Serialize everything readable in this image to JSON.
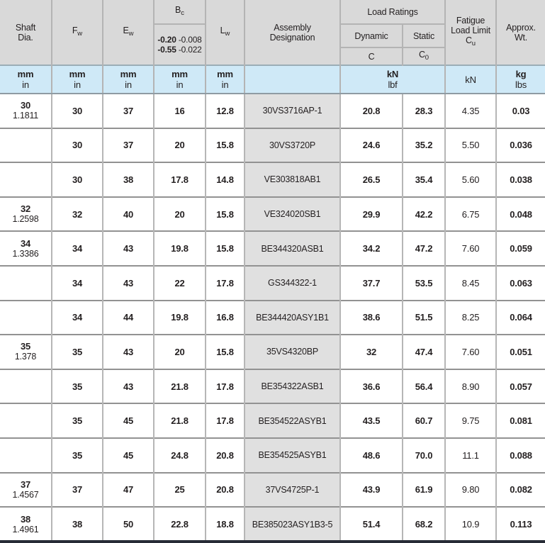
{
  "header": {
    "shaft_line1": "Shaft",
    "shaft_line2": "Dia.",
    "fw_base": "F",
    "fw_sub": "w",
    "ew_base": "E",
    "ew_sub": "w",
    "bc_base": "B",
    "bc_sub": "c",
    "bc_tol_mm_1": "-0.20",
    "bc_tol_in_1": "-0.008",
    "bc_tol_mm_2": "-0.55",
    "bc_tol_in_2": "-0.022",
    "lw_base": "L",
    "lw_sub": "w",
    "assembly_line1": "Assembly",
    "assembly_line2": "Designation",
    "load_ratings": "Load Ratings",
    "dynamic": "Dynamic",
    "static": "Static",
    "c_label": "C",
    "c0_base": "C",
    "c0_sub": "0",
    "fatigue_line1": "Fatigue",
    "fatigue_line2": "Load Limit",
    "fatigue_base": "C",
    "fatigue_sub": "u",
    "approx_line1": "Approx.",
    "approx_line2": "Wt."
  },
  "units": {
    "mm": "mm",
    "in": "in",
    "kn": "kN",
    "lbf": "lbf",
    "kn_fatigue": "kN",
    "kg": "kg",
    "lbs": "lbs"
  },
  "rows": [
    {
      "shaft_mm": "30",
      "shaft_in": "1.1811",
      "fw": "30",
      "ew": "37",
      "bc": "16",
      "lw": "12.8",
      "assembly": "30VS3716AP-1",
      "c": "20.8",
      "c0": "28.3",
      "cu": "4.35",
      "wt": "0.03"
    },
    {
      "shaft_mm": "",
      "shaft_in": "",
      "fw": "30",
      "ew": "37",
      "bc": "20",
      "lw": "15.8",
      "assembly": "30VS3720P",
      "c": "24.6",
      "c0": "35.2",
      "cu": "5.50",
      "wt": "0.036"
    },
    {
      "shaft_mm": "",
      "shaft_in": "",
      "fw": "30",
      "ew": "38",
      "bc": "17.8",
      "lw": "14.8",
      "assembly": "VE303818AB1",
      "c": "26.5",
      "c0": "35.4",
      "cu": "5.60",
      "wt": "0.038"
    },
    {
      "shaft_mm": "32",
      "shaft_in": "1.2598",
      "fw": "32",
      "ew": "40",
      "bc": "20",
      "lw": "15.8",
      "assembly": "VE324020SB1",
      "c": "29.9",
      "c0": "42.2",
      "cu": "6.75",
      "wt": "0.048"
    },
    {
      "shaft_mm": "34",
      "shaft_in": "1.3386",
      "fw": "34",
      "ew": "43",
      "bc": "19.8",
      "lw": "15.8",
      "assembly": "BE344320ASB1",
      "c": "34.2",
      "c0": "47.2",
      "cu": "7.60",
      "wt": "0.059"
    },
    {
      "shaft_mm": "",
      "shaft_in": "",
      "fw": "34",
      "ew": "43",
      "bc": "22",
      "lw": "17.8",
      "assembly": "GS344322-1",
      "c": "37.7",
      "c0": "53.5",
      "cu": "8.45",
      "wt": "0.063"
    },
    {
      "shaft_mm": "",
      "shaft_in": "",
      "fw": "34",
      "ew": "44",
      "bc": "19.8",
      "lw": "16.8",
      "assembly": "BE344420ASY1B1",
      "c": "38.6",
      "c0": "51.5",
      "cu": "8.25",
      "wt": "0.064"
    },
    {
      "shaft_mm": "35",
      "shaft_in": "1.378",
      "fw": "35",
      "ew": "43",
      "bc": "20",
      "lw": "15.8",
      "assembly": "35VS4320BP",
      "c": "32",
      "c0": "47.4",
      "cu": "7.60",
      "wt": "0.051"
    },
    {
      "shaft_mm": "",
      "shaft_in": "",
      "fw": "35",
      "ew": "43",
      "bc": "21.8",
      "lw": "17.8",
      "assembly": "BE354322ASB1",
      "c": "36.6",
      "c0": "56.4",
      "cu": "8.90",
      "wt": "0.057"
    },
    {
      "shaft_mm": "",
      "shaft_in": "",
      "fw": "35",
      "ew": "45",
      "bc": "21.8",
      "lw": "17.8",
      "assembly": "BE354522ASYB1",
      "c": "43.5",
      "c0": "60.7",
      "cu": "9.75",
      "wt": "0.081"
    },
    {
      "shaft_mm": "",
      "shaft_in": "",
      "fw": "35",
      "ew": "45",
      "bc": "24.8",
      "lw": "20.8",
      "assembly": "BE354525ASYB1",
      "c": "48.6",
      "c0": "70.0",
      "cu": "11.1",
      "wt": "0.088"
    },
    {
      "shaft_mm": "37",
      "shaft_in": "1.4567",
      "fw": "37",
      "ew": "47",
      "bc": "25",
      "lw": "20.8",
      "assembly": "37VS4725P-1",
      "c": "43.9",
      "c0": "61.9",
      "cu": "9.80",
      "wt": "0.082"
    },
    {
      "shaft_mm": "38",
      "shaft_in": "1.4961",
      "fw": "38",
      "ew": "50",
      "bc": "22.8",
      "lw": "18.8",
      "assembly": "BE385023ASY1B3-5",
      "c": "51.4",
      "c0": "68.2",
      "cu": "10.9",
      "wt": "0.113"
    }
  ],
  "colors": {
    "header_bg": "#d9d9d9",
    "units_bg": "#cfe9f7",
    "assembly_bg": "#e0e0e0",
    "grid_vertical": "#b6b6b6",
    "grid_horizontal": "#929292",
    "bottom_rule": "#272b36",
    "text": "#231f20"
  }
}
